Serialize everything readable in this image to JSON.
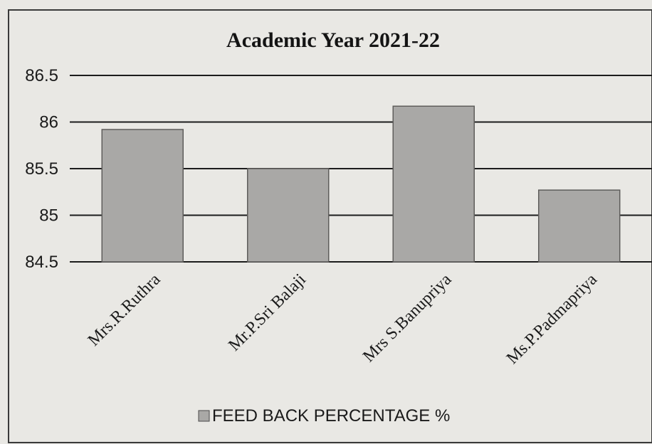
{
  "chart_data": {
    "type": "bar",
    "title": "Academic Year 2021-22",
    "xlabel": "",
    "ylabel": "",
    "categories": [
      "Mrs.R.Ruthra",
      "Mr.P.Sri Balaji",
      "Mrs S.Banupriya",
      "Ms.P.Padmapriya"
    ],
    "series": [
      {
        "name": "FEED BACK PERCENTAGE %",
        "values": [
          85.92,
          85.5,
          86.17,
          85.27
        ]
      }
    ],
    "ylim": [
      84.5,
      86.5
    ],
    "yticks": [
      "86.5",
      "86",
      "85.5",
      "85",
      "84.5"
    ],
    "grid": true,
    "legend": "bottom",
    "colors": {
      "bar": "#a9a8a6",
      "bar_edge": "#5e5d5b",
      "grid": "#1c1c1c",
      "background": "#e9e8e4",
      "text": "#141414"
    }
  }
}
